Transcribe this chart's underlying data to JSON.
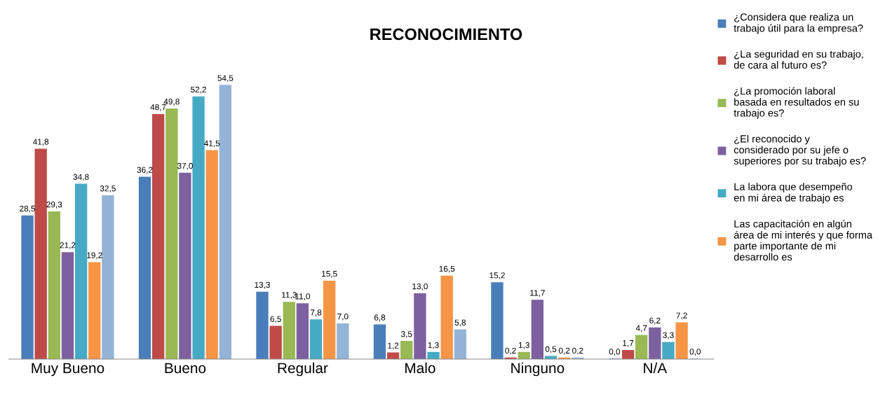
{
  "chart_data": {
    "type": "bar",
    "title": "RECONOCIMIENTO",
    "categories": [
      "Muy Bueno",
      "Bueno",
      "Regular",
      "Malo",
      "Ninguno",
      "N/A"
    ],
    "series": [
      {
        "name": "¿Considera que realiza un\ntrabajo útil para la empresa?",
        "color": "#4a7ebb",
        "values": [
          28.5,
          36.2,
          13.3,
          6.8,
          15.2,
          0.0
        ],
        "value_labels": [
          "28,5",
          "36,2",
          "13,3",
          "6,8",
          "15,2",
          "0,0"
        ]
      },
      {
        "name": "¿La seguridad en su trabajo,\nde cara al futuro es?",
        "color": "#be4b48",
        "values": [
          41.8,
          48.7,
          6.5,
          1.2,
          0.2,
          1.7
        ],
        "value_labels": [
          "41,8",
          "48,7",
          "6,5",
          "1,2",
          "0,2",
          "1,7"
        ]
      },
      {
        "name": "¿La promoción laboral\nbasada en resultados en su\ntrabajo es?",
        "color": "#98b954",
        "values": [
          29.3,
          49.8,
          11.3,
          3.5,
          1.3,
          4.7
        ],
        "value_labels": [
          "29,3",
          "49,8",
          "11,3",
          "3,5",
          "1,3",
          "4,7"
        ]
      },
      {
        "name": "¿El reconocido y\nconsiderado por su jefe o\nsuperiores por su trabajo es?",
        "color": "#7d60a0",
        "values": [
          21.2,
          37.0,
          11.0,
          13.0,
          11.7,
          6.2
        ],
        "value_labels": [
          "21,2",
          "37,0",
          "11,0",
          "13,0",
          "11,7",
          "6,2"
        ]
      },
      {
        "name": "La labora que desempeño\nen mi área de trabajo es",
        "color": "#46aac5",
        "values": [
          34.8,
          52.2,
          7.8,
          1.3,
          0.5,
          3.3
        ],
        "value_labels": [
          "34,8",
          "52,2",
          "7,8",
          "1,3",
          "0,5",
          "3,3"
        ]
      },
      {
        "name": "Las capacitación en algún\nárea de mi interés y que forma\nparte importante de mi\ndesarrollo es",
        "color": "#f69546",
        "values": [
          19.2,
          41.5,
          15.5,
          16.5,
          0.2,
          7.2
        ],
        "value_labels": [
          "19,2",
          "41,5",
          "15,5",
          "16,5",
          "0,2",
          "7,2"
        ]
      },
      {
        "color": "#95b3d7",
        "values": [
          32.5,
          54.5,
          7.0,
          5.8,
          0.2,
          0.0
        ],
        "value_labels": [
          "32,5",
          "54,5",
          "7,0",
          "5,8",
          "0,2",
          "0,0"
        ]
      }
    ],
    "legend": "right",
    "grid": false
  }
}
